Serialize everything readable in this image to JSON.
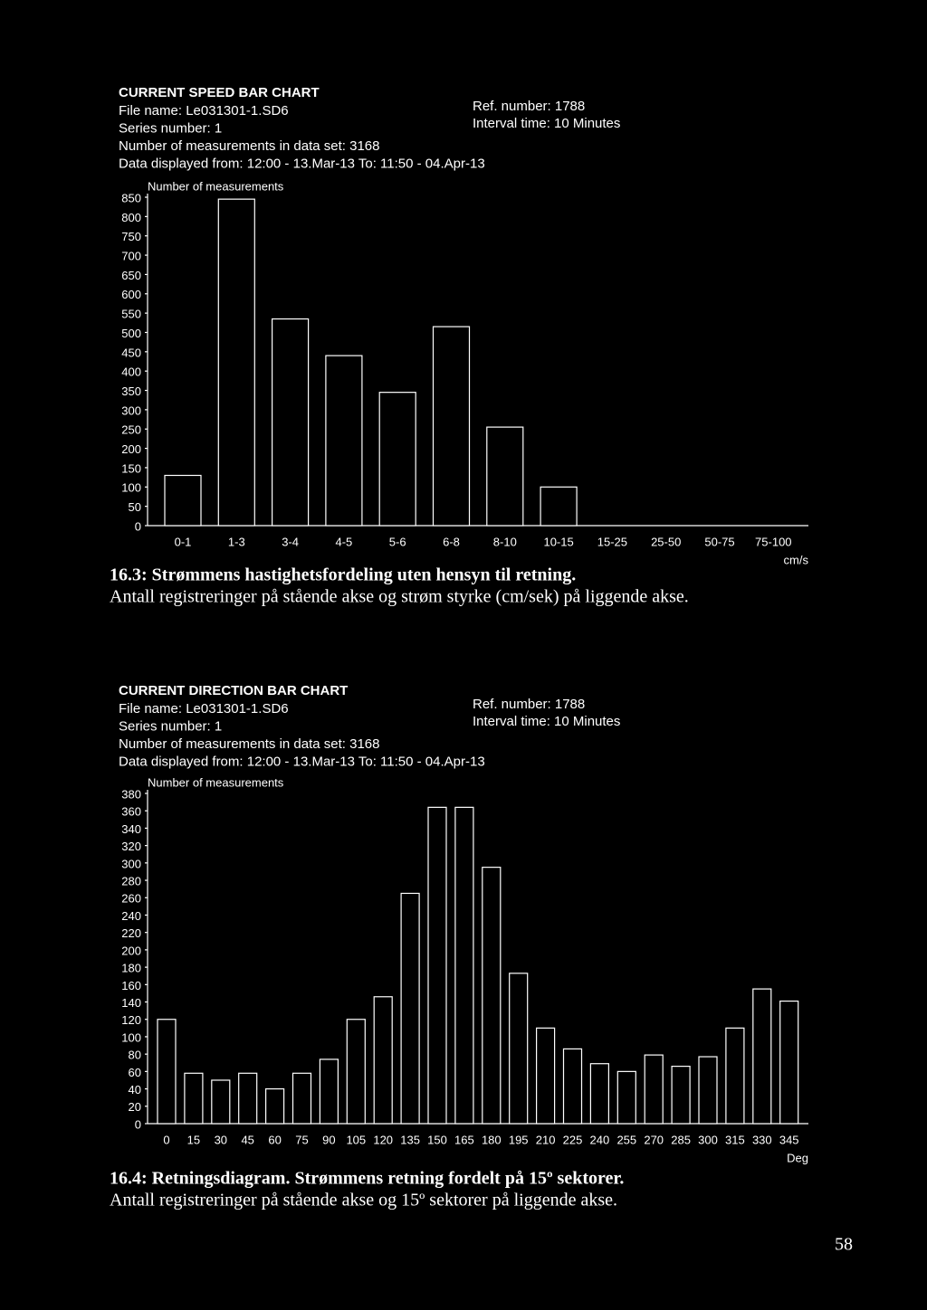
{
  "chart_data": [
    {
      "type": "bar",
      "title": "CURRENT SPEED BAR CHART",
      "info": [
        "File name: Le031301-1.SD6",
        "Series number: 1",
        "Number of measurements in data set: 3168",
        "Data displayed from: 12:00 - 13.Mar-13   To: 11:50 - 04.Apr-13"
      ],
      "info_right": [
        "Ref. number: 1788",
        "Interval time: 10 Minutes"
      ],
      "y_label": "Number of measurements",
      "x_label": "cm/s",
      "categories": [
        "0-1",
        "1-3",
        "3-4",
        "4-5",
        "5-6",
        "6-8",
        "8-10",
        "10-15",
        "15-25",
        "25-50",
        "50-75",
        "75-100"
      ],
      "values": [
        130,
        845,
        535,
        440,
        345,
        515,
        255,
        100,
        0,
        0,
        0,
        0
      ],
      "color": "#ffffff",
      "ylim": [
        0,
        850
      ],
      "yticks": [
        0,
        50,
        100,
        150,
        200,
        250,
        300,
        350,
        400,
        450,
        500,
        550,
        600,
        650,
        700,
        750,
        800,
        850
      ],
      "caption": [
        "16.3: Strømmens hastighetsfordeling uten hensyn til retning.",
        "Antall registreringer på stående akse og strøm styrke (cm/sek) på liggende akse."
      ]
    },
    {
      "type": "bar",
      "title": "CURRENT DIRECTION BAR CHART",
      "info": [
        "File name: Le031301-1.SD6",
        "Series number: 1",
        "Number of measurements in data set: 3168",
        "Data displayed from: 12:00 - 13.Mar-13   To: 11:50 - 04.Apr-13"
      ],
      "info_right": [
        "Ref. number: 1788",
        "Interval time: 10 Minutes"
      ],
      "y_label": "Number of measurements",
      "x_label": "Deg",
      "categories": [
        "0",
        "15",
        "30",
        "45",
        "60",
        "75",
        "90",
        "105",
        "120",
        "135",
        "150",
        "165",
        "180",
        "195",
        "210",
        "225",
        "240",
        "255",
        "270",
        "285",
        "300",
        "315",
        "330",
        "345"
      ],
      "values": [
        120,
        58,
        50,
        58,
        40,
        58,
        74,
        120,
        146,
        265,
        364,
        364,
        295,
        173,
        110,
        86,
        69,
        60,
        79,
        66,
        77,
        110,
        155,
        141
      ],
      "color": "#ffffff",
      "ylim": [
        0,
        380
      ],
      "yticks": [
        0,
        20,
        40,
        60,
        80,
        100,
        120,
        140,
        160,
        180,
        200,
        220,
        240,
        260,
        280,
        300,
        320,
        340,
        360,
        380
      ],
      "caption": [
        "16.4: Retningsdiagram. Strømmens retning fordelt på 15º sektorer.",
        "Antall registreringer på stående akse og 15º sektorer på liggende akse."
      ]
    }
  ],
  "page_number": "58"
}
